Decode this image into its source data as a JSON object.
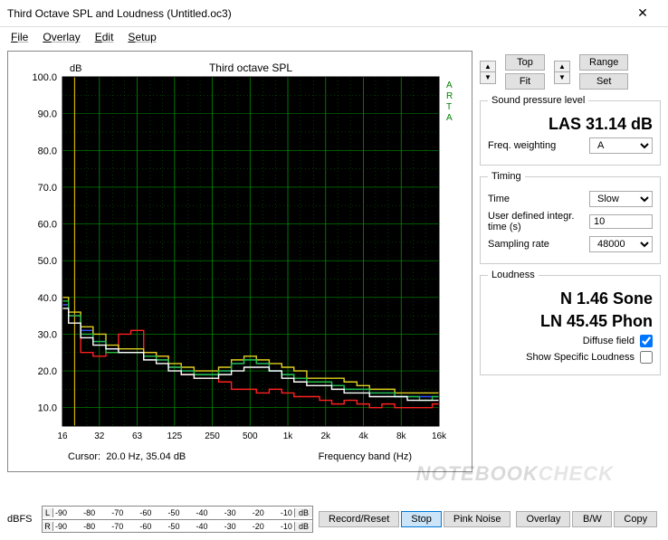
{
  "window": {
    "title": "Third Octave SPL and Loudness (Untitled.oc3)"
  },
  "menu": {
    "file": "File",
    "overlay": "Overlay",
    "edit": "Edit",
    "setup": "Setup"
  },
  "chart": {
    "type": "third-octave-step",
    "title": "Third octave SPL",
    "y_label": "dB",
    "x_label": "Frequency band (Hz)",
    "side_label": "ARTA",
    "background_color": "#000000",
    "grid_color": "#009000",
    "text_color": "#008000",
    "cursor_color": "#d0b000",
    "ylim": [
      5,
      100
    ],
    "ytick_step": 10,
    "yticks": [
      "10.0",
      "20.0",
      "30.0",
      "40.0",
      "50.0",
      "60.0",
      "70.0",
      "80.0",
      "90.0",
      "100.0"
    ],
    "x_bands": [
      "16",
      "32",
      "63",
      "125",
      "250",
      "500",
      "1k",
      "2k",
      "4k",
      "8k",
      "16k"
    ],
    "x_all_bands": [
      16,
      20,
      25,
      31.5,
      40,
      50,
      63,
      80,
      100,
      125,
      160,
      200,
      250,
      315,
      400,
      500,
      630,
      800,
      1000,
      1250,
      1600,
      2000,
      2500,
      3150,
      4000,
      5000,
      6300,
      8000,
      10000,
      12500,
      16000
    ],
    "series": [
      {
        "name": "red",
        "color": "#ff2020",
        "values": [
          38,
          35,
          25,
          24,
          25,
          30,
          31,
          25,
          24,
          21,
          19,
          18,
          18,
          17,
          15,
          15,
          14,
          15,
          14,
          13,
          13,
          12,
          11,
          12,
          11,
          10,
          11,
          10,
          10,
          10,
          11
        ]
      },
      {
        "name": "blue",
        "color": "#3050ff",
        "values": [
          38,
          35,
          31,
          28,
          26,
          25,
          25,
          24,
          23,
          21,
          20,
          19,
          19,
          20,
          22,
          23,
          22,
          20,
          19,
          18,
          17,
          17,
          16,
          15,
          15,
          14,
          14,
          13,
          13,
          13,
          13
        ]
      },
      {
        "name": "yellow",
        "color": "#e0d020",
        "values": [
          40,
          36,
          32,
          30,
          27,
          26,
          26,
          25,
          24,
          22,
          21,
          20,
          20,
          21,
          23,
          24,
          23,
          22,
          21,
          20,
          18,
          18,
          18,
          17,
          16,
          15,
          15,
          14,
          14,
          14,
          14
        ]
      },
      {
        "name": "green",
        "color": "#20c040",
        "values": [
          39,
          35,
          30,
          28,
          25,
          25,
          25,
          24,
          23,
          21,
          20,
          19,
          19,
          20,
          22,
          23,
          22,
          20,
          19,
          18,
          17,
          17,
          16,
          15,
          15,
          14,
          14,
          13,
          13,
          12,
          13
        ]
      },
      {
        "name": "white",
        "color": "#ffffff",
        "values": [
          37,
          33,
          29,
          27,
          26,
          25,
          25,
          23,
          22,
          20,
          19,
          18,
          18,
          19,
          20,
          21,
          21,
          20,
          18,
          17,
          16,
          16,
          15,
          14,
          14,
          13,
          13,
          13,
          12,
          12,
          12
        ]
      }
    ],
    "cursor": {
      "freq": "20.0 Hz",
      "spl": "35.04 dB",
      "label": "Cursor:",
      "band_index": 1
    }
  },
  "controls": {
    "top_label": "Top",
    "fit_label": "Fit",
    "range_label": "Range",
    "set_label": "Set"
  },
  "spl": {
    "legend": "Sound pressure level",
    "reading": "LAS 31.14 dB",
    "freq_weighting_label": "Freq. weighting",
    "freq_weighting_value": "A"
  },
  "timing": {
    "legend": "Timing",
    "time_label": "Time",
    "time_value": "Slow",
    "integr_label": "User defined integr. time (s)",
    "integr_value": "10",
    "sampling_label": "Sampling rate",
    "sampling_value": "48000"
  },
  "loudness": {
    "legend": "Loudness",
    "sone": "N 1.46 Sone",
    "phon": "LN 45.45 Phon",
    "diffuse_label": "Diffuse field",
    "diffuse_checked": true,
    "show_specific_label": "Show Specific Loudness",
    "show_specific_checked": false
  },
  "meter": {
    "label": "dBFS",
    "ticks": [
      "-90",
      "-80",
      "-70",
      "-60",
      "-50",
      "-40",
      "-30",
      "-20",
      "-10"
    ],
    "unit": "dB",
    "l_label": "L",
    "r_label": "R",
    "l_fill_pct": 68,
    "r_fill_pct": 3
  },
  "buttons": {
    "record": "Record/Reset",
    "stop": "Stop",
    "pink": "Pink Noise",
    "overlay": "Overlay",
    "bw": "B/W",
    "copy": "Copy"
  }
}
